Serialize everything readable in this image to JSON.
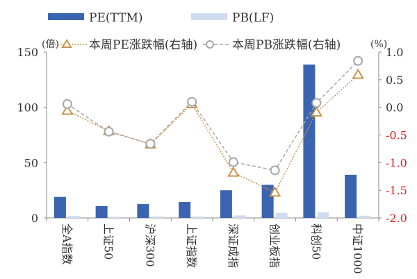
{
  "chart_data": {
    "type": "bar+line",
    "categories": [
      "全A指数",
      "上证50",
      "沪深300",
      "上证指数",
      "深证成指",
      "创业板指",
      "科创50",
      "中证1000"
    ],
    "series": [
      {
        "name": "PE(TTM)",
        "kind": "bar",
        "axis": "left",
        "color": "#3a64b0",
        "values": [
          19,
          10.7,
          12.5,
          14.4,
          25,
          30,
          138.7,
          39
        ]
      },
      {
        "name": "PB(LF)",
        "kind": "bar",
        "axis": "left",
        "color": "#cfdcf0",
        "values": [
          1.8,
          1.2,
          1.4,
          1.3,
          2.3,
          4.5,
          5,
          2
        ]
      },
      {
        "name": "本周PE涨跌幅(右轴)",
        "kind": "line",
        "marker": "triangle",
        "axis": "right",
        "color": "#c8954a",
        "values": [
          -0.06,
          -0.43,
          -0.67,
          0.06,
          -1.18,
          -1.54,
          -0.09,
          0.59
        ]
      },
      {
        "name": "本周PB涨跌幅(右轴)",
        "kind": "line",
        "marker": "circle",
        "axis": "right",
        "color": "#a6a6a6",
        "values": [
          0.06,
          -0.44,
          -0.66,
          0.1,
          -0.99,
          -1.14,
          0.08,
          0.84
        ]
      }
    ],
    "left_axis": {
      "label": "(倍)",
      "ylim": [
        0,
        150
      ],
      "ticks": [
        "0",
        "50",
        "100",
        "150"
      ]
    },
    "right_axis": {
      "label": "(%)",
      "ylim": [
        -2,
        1
      ],
      "ticks": [
        "1.0",
        "0.5",
        "0.0",
        "-0.5",
        "-1.0",
        "-1.5",
        "-2.0"
      ],
      "negative_color": "#e02020"
    },
    "legend": "top",
    "grid": false
  }
}
